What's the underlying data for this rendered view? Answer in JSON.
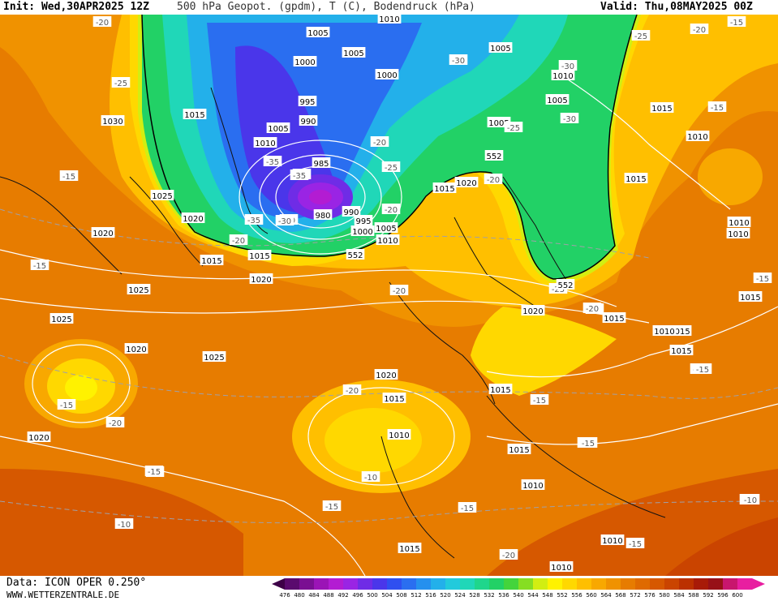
{
  "header": {
    "init": "Init: Wed,30APR2025 12Z",
    "title": "500 hPa Geopot. (gpdm), T (C), Bodendruck (hPa)",
    "valid": "Valid: Thu,08MAY2025 00Z"
  },
  "footer": {
    "data_source": "Data: ICON OPER 0.250°",
    "website": "WWW.WETTERZENTRALE.DE"
  },
  "colorbar": {
    "ticks": [
      "476",
      "480",
      "484",
      "488",
      "492",
      "496",
      "500",
      "504",
      "508",
      "512",
      "516",
      "520",
      "524",
      "528",
      "532",
      "536",
      "540",
      "544",
      "548",
      "552",
      "556",
      "560",
      "564",
      "568",
      "572",
      "576",
      "580",
      "584",
      "588",
      "592",
      "596",
      "600"
    ],
    "colors": [
      "#3d0047",
      "#5a0a6e",
      "#7a0f92",
      "#9b14b6",
      "#b31cd2",
      "#9a24e4",
      "#6f2ce6",
      "#4a36ea",
      "#2f4ff0",
      "#2a6ef0",
      "#2590ee",
      "#23b0ea",
      "#22cadc",
      "#20d7b8",
      "#1fd68c",
      "#22d166",
      "#44d43c",
      "#86de22",
      "#d2ee12",
      "#fff200",
      "#ffd800",
      "#ffbf00",
      "#f8a800",
      "#f09200",
      "#e77c00",
      "#df6a00",
      "#d65800",
      "#ca4400",
      "#bb3000",
      "#a81a08",
      "#971018",
      "#c8166e",
      "#e81ea0"
    ]
  },
  "map_labels": {
    "pressure": [
      "1010",
      "1005",
      "1005",
      "1000",
      "1005",
      "1000",
      "995",
      "990",
      "1005",
      "1015",
      "1030",
      "1010",
      "985",
      "980",
      "990",
      "995",
      "1000",
      "1005",
      "1010",
      "1015",
      "1020",
      "1025",
      "1020",
      "1020",
      "1015",
      "1015",
      "1020",
      "1025",
      "1025",
      "1020",
      "1020",
      "1025",
      "1020",
      "1015",
      "1015",
      "1010",
      "1010",
      "1005",
      "1005",
      "1015",
      "1010",
      "1010",
      "1015",
      "1010",
      "1015",
      "1015",
      "1015",
      "1020",
      "1015",
      "1015",
      "1010",
      "1010",
      "1010",
      "1015",
      "1010",
      "1010",
      "1020"
    ],
    "temperature": [
      "-20",
      "-25",
      "-25",
      "-30",
      "-30",
      "-35",
      "-30",
      "-30",
      "-35",
      "-35",
      "-35",
      "-30",
      "-25",
      "-25",
      "-20",
      "-20",
      "-20",
      "-20",
      "-20",
      "-15",
      "-15",
      "-15",
      "-15",
      "-20",
      "-20",
      "-20",
      "-15",
      "-15",
      "-20",
      "-15",
      "-20",
      "-15",
      "-15",
      "-10",
      "-10",
      "-15",
      "-10",
      "-15",
      "-10",
      "-15",
      "-20",
      "-25",
      "-15",
      "-15",
      "-10",
      "-15"
    ],
    "geopotential": [
      "552",
      "552",
      "552"
    ]
  }
}
